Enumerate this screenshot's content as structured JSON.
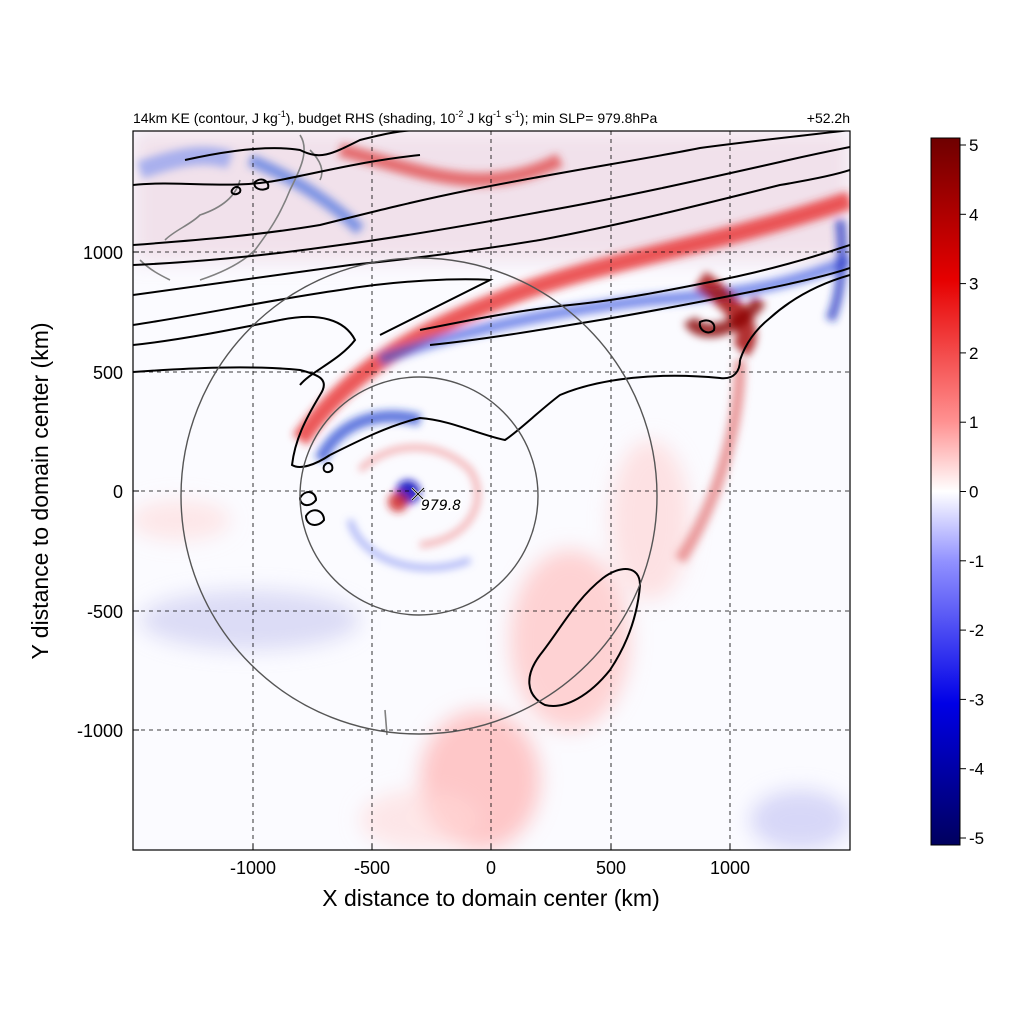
{
  "title": {
    "main_prefix": "14km KE (contour, J kg",
    "main_mid1": "), budget RHS (shading, 10",
    "main_mid2": " J kg",
    "main_mid3": " s",
    "main_suffix": "); min SLP= 979.8hPa",
    "sup_neg1": "-1",
    "sup_neg2": "-2",
    "time": "+52.2h"
  },
  "chart_data": {
    "type": "heatmap",
    "xlabel": "X distance to domain center (km)",
    "ylabel": "Y distance to domain center (km)",
    "xlim": [
      -1500,
      1500
    ],
    "ylim": [
      -1500,
      1500
    ],
    "xticks": [
      -1000,
      -500,
      0,
      500,
      1000
    ],
    "yticks": [
      -1000,
      -500,
      0,
      500,
      1000
    ],
    "grid": true,
    "colorbar": {
      "range": [
        -5,
        5
      ],
      "ticks": [
        5,
        4,
        3,
        2,
        1,
        0,
        -1,
        -2,
        -3,
        -4,
        -5
      ],
      "colors": [
        "#00005a",
        "#0000e6",
        "#8c8cff",
        "#ffffff",
        "#ff8c8c",
        "#e60000",
        "#780000"
      ]
    },
    "storm_center": {
      "x": -320,
      "y": 0,
      "min_slp_label": "979.8"
    },
    "range_rings_km": [
      500,
      1000
    ],
    "ke_contours": "black lines (zonal band north of ~500 km, closed contour near x 150 to 650, y -900 to -300)"
  }
}
